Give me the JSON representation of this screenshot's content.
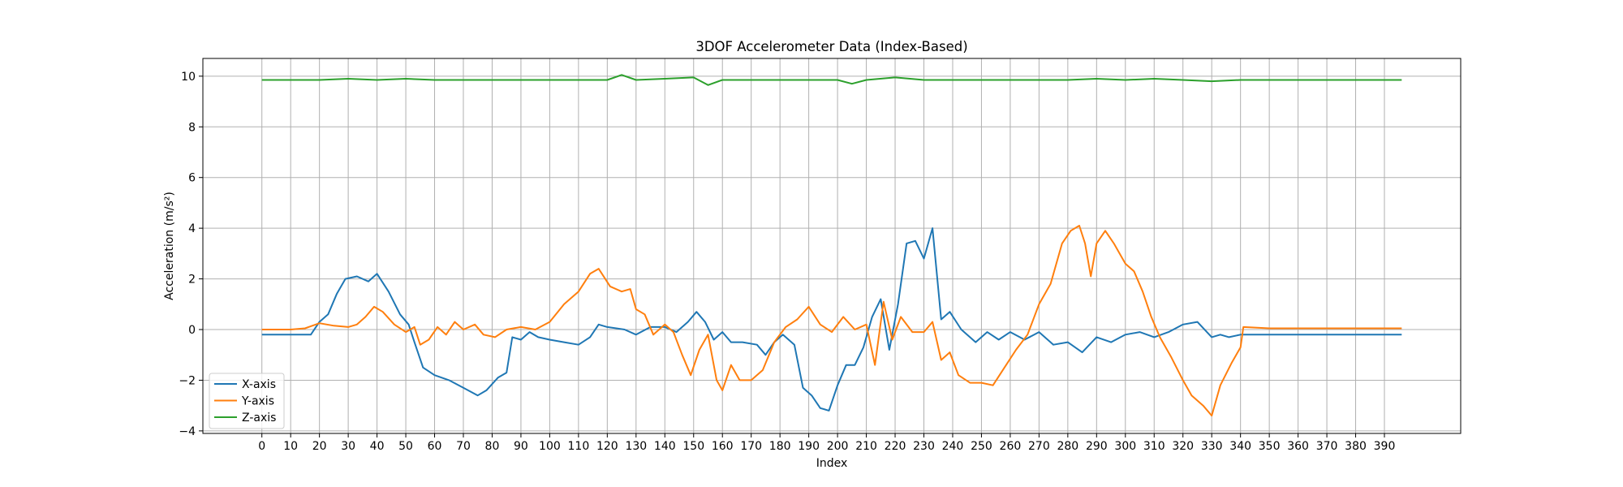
{
  "chart_data": {
    "type": "line",
    "title": "3DOF Accelerometer Data (Index-Based)",
    "xlabel": "Index",
    "ylabel": "Acceleration (m/s²)",
    "xlim": [
      -20.5,
      416.5
    ],
    "ylim": [
      -4.1,
      10.7
    ],
    "xticks": [
      0,
      10,
      20,
      30,
      40,
      50,
      60,
      70,
      80,
      90,
      100,
      110,
      120,
      130,
      140,
      150,
      160,
      170,
      180,
      190,
      200,
      210,
      220,
      230,
      240,
      250,
      260,
      270,
      280,
      290,
      300,
      310,
      320,
      330,
      340,
      350,
      360,
      370,
      380,
      390
    ],
    "yticks": [
      -4,
      -2,
      0,
      2,
      4,
      6,
      8,
      10
    ],
    "grid": true,
    "legend_position": "lower-left",
    "series": [
      {
        "name": "X-axis",
        "color": "#1f77b4",
        "points": [
          [
            0,
            -0.2
          ],
          [
            5,
            -0.2
          ],
          [
            10,
            -0.2
          ],
          [
            17,
            -0.2
          ],
          [
            20,
            0.3
          ],
          [
            23,
            0.6
          ],
          [
            26,
            1.4
          ],
          [
            29,
            2.0
          ],
          [
            33,
            2.1
          ],
          [
            37,
            1.9
          ],
          [
            40,
            2.2
          ],
          [
            44,
            1.5
          ],
          [
            48,
            0.6
          ],
          [
            51,
            0.2
          ],
          [
            53,
            -0.5
          ],
          [
            56,
            -1.5
          ],
          [
            60,
            -1.8
          ],
          [
            65,
            -2.0
          ],
          [
            70,
            -2.3
          ],
          [
            75,
            -2.6
          ],
          [
            78,
            -2.4
          ],
          [
            82,
            -1.9
          ],
          [
            85,
            -1.7
          ],
          [
            87,
            -0.3
          ],
          [
            90,
            -0.4
          ],
          [
            93,
            -0.1
          ],
          [
            96,
            -0.3
          ],
          [
            100,
            -0.4
          ],
          [
            105,
            -0.5
          ],
          [
            110,
            -0.6
          ],
          [
            114,
            -0.3
          ],
          [
            117,
            0.2
          ],
          [
            120,
            0.1
          ],
          [
            126,
            0.0
          ],
          [
            130,
            -0.2
          ],
          [
            135,
            0.1
          ],
          [
            140,
            0.1
          ],
          [
            144,
            -0.1
          ],
          [
            148,
            0.3
          ],
          [
            151,
            0.7
          ],
          [
            154,
            0.3
          ],
          [
            157,
            -0.4
          ],
          [
            160,
            -0.1
          ],
          [
            163,
            -0.5
          ],
          [
            167,
            -0.5
          ],
          [
            172,
            -0.6
          ],
          [
            175,
            -1.0
          ],
          [
            178,
            -0.5
          ],
          [
            181,
            -0.2
          ],
          [
            185,
            -0.6
          ],
          [
            188,
            -2.3
          ],
          [
            191,
            -2.6
          ],
          [
            194,
            -3.1
          ],
          [
            197,
            -3.2
          ],
          [
            200,
            -2.2
          ],
          [
            203,
            -1.4
          ],
          [
            206,
            -1.4
          ],
          [
            209,
            -0.7
          ],
          [
            212,
            0.5
          ],
          [
            215,
            1.2
          ],
          [
            218,
            -0.8
          ],
          [
            221,
            1.0
          ],
          [
            224,
            3.4
          ],
          [
            227,
            3.5
          ],
          [
            230,
            2.8
          ],
          [
            233,
            4.0
          ],
          [
            236,
            0.4
          ],
          [
            239,
            0.7
          ],
          [
            243,
            0.0
          ],
          [
            248,
            -0.5
          ],
          [
            252,
            -0.1
          ],
          [
            256,
            -0.4
          ],
          [
            260,
            -0.1
          ],
          [
            265,
            -0.4
          ],
          [
            270,
            -0.1
          ],
          [
            275,
            -0.6
          ],
          [
            280,
            -0.5
          ],
          [
            285,
            -0.9
          ],
          [
            290,
            -0.3
          ],
          [
            295,
            -0.5
          ],
          [
            300,
            -0.2
          ],
          [
            305,
            -0.1
          ],
          [
            310,
            -0.3
          ],
          [
            315,
            -0.1
          ],
          [
            320,
            0.2
          ],
          [
            325,
            0.3
          ],
          [
            330,
            -0.3
          ],
          [
            333,
            -0.2
          ],
          [
            336,
            -0.3
          ],
          [
            340,
            -0.2
          ],
          [
            350,
            -0.2
          ],
          [
            360,
            -0.2
          ],
          [
            370,
            -0.2
          ],
          [
            380,
            -0.2
          ],
          [
            390,
            -0.2
          ],
          [
            396,
            -0.2
          ]
        ]
      },
      {
        "name": "Y-axis",
        "color": "#ff7f0e",
        "points": [
          [
            0,
            0.0
          ],
          [
            10,
            0.0
          ],
          [
            15,
            0.05
          ],
          [
            20,
            0.25
          ],
          [
            25,
            0.15
          ],
          [
            30,
            0.1
          ],
          [
            33,
            0.2
          ],
          [
            36,
            0.5
          ],
          [
            39,
            0.9
          ],
          [
            42,
            0.7
          ],
          [
            46,
            0.2
          ],
          [
            50,
            -0.1
          ],
          [
            53,
            0.1
          ],
          [
            55,
            -0.6
          ],
          [
            58,
            -0.4
          ],
          [
            61,
            0.1
          ],
          [
            64,
            -0.2
          ],
          [
            67,
            0.3
          ],
          [
            70,
            0.0
          ],
          [
            74,
            0.2
          ],
          [
            77,
            -0.2
          ],
          [
            81,
            -0.3
          ],
          [
            85,
            0.0
          ],
          [
            90,
            0.1
          ],
          [
            95,
            0.0
          ],
          [
            100,
            0.3
          ],
          [
            105,
            1.0
          ],
          [
            110,
            1.5
          ],
          [
            114,
            2.2
          ],
          [
            117,
            2.4
          ],
          [
            121,
            1.7
          ],
          [
            125,
            1.5
          ],
          [
            128,
            1.6
          ],
          [
            130,
            0.8
          ],
          [
            133,
            0.6
          ],
          [
            136,
            -0.2
          ],
          [
            140,
            0.2
          ],
          [
            143,
            -0.1
          ],
          [
            146,
            -1.0
          ],
          [
            149,
            -1.8
          ],
          [
            152,
            -0.8
          ],
          [
            155,
            -0.2
          ],
          [
            158,
            -2.0
          ],
          [
            160,
            -2.4
          ],
          [
            163,
            -1.4
          ],
          [
            166,
            -2.0
          ],
          [
            170,
            -2.0
          ],
          [
            174,
            -1.6
          ],
          [
            178,
            -0.5
          ],
          [
            182,
            0.1
          ],
          [
            186,
            0.4
          ],
          [
            190,
            0.9
          ],
          [
            194,
            0.2
          ],
          [
            198,
            -0.1
          ],
          [
            202,
            0.5
          ],
          [
            206,
            0.0
          ],
          [
            210,
            0.2
          ],
          [
            213,
            -1.4
          ],
          [
            216,
            1.1
          ],
          [
            219,
            -0.4
          ],
          [
            222,
            0.5
          ],
          [
            226,
            -0.1
          ],
          [
            230,
            -0.1
          ],
          [
            233,
            0.3
          ],
          [
            236,
            -1.2
          ],
          [
            239,
            -0.9
          ],
          [
            242,
            -1.8
          ],
          [
            246,
            -2.1
          ],
          [
            250,
            -2.1
          ],
          [
            254,
            -2.2
          ],
          [
            258,
            -1.5
          ],
          [
            262,
            -0.8
          ],
          [
            266,
            -0.2
          ],
          [
            270,
            1.0
          ],
          [
            274,
            1.8
          ],
          [
            278,
            3.4
          ],
          [
            281,
            3.9
          ],
          [
            284,
            4.1
          ],
          [
            286,
            3.4
          ],
          [
            288,
            2.1
          ],
          [
            290,
            3.4
          ],
          [
            293,
            3.9
          ],
          [
            296,
            3.4
          ],
          [
            300,
            2.6
          ],
          [
            303,
            2.3
          ],
          [
            306,
            1.5
          ],
          [
            309,
            0.5
          ],
          [
            312,
            -0.3
          ],
          [
            316,
            -1.1
          ],
          [
            320,
            -2.0
          ],
          [
            323,
            -2.6
          ],
          [
            327,
            -3.0
          ],
          [
            330,
            -3.4
          ],
          [
            333,
            -2.2
          ],
          [
            337,
            -1.3
          ],
          [
            340,
            -0.7
          ],
          [
            341,
            0.1
          ],
          [
            350,
            0.05
          ],
          [
            360,
            0.05
          ],
          [
            370,
            0.05
          ],
          [
            380,
            0.05
          ],
          [
            390,
            0.05
          ],
          [
            396,
            0.05
          ]
        ]
      },
      {
        "name": "Z-axis",
        "color": "#2ca02c",
        "points": [
          [
            0,
            9.85
          ],
          [
            10,
            9.85
          ],
          [
            20,
            9.85
          ],
          [
            30,
            9.9
          ],
          [
            40,
            9.85
          ],
          [
            50,
            9.9
          ],
          [
            60,
            9.85
          ],
          [
            70,
            9.85
          ],
          [
            80,
            9.85
          ],
          [
            90,
            9.85
          ],
          [
            100,
            9.85
          ],
          [
            110,
            9.85
          ],
          [
            120,
            9.85
          ],
          [
            125,
            10.05
          ],
          [
            130,
            9.85
          ],
          [
            140,
            9.9
          ],
          [
            150,
            9.95
          ],
          [
            155,
            9.65
          ],
          [
            160,
            9.85
          ],
          [
            170,
            9.85
          ],
          [
            180,
            9.85
          ],
          [
            190,
            9.85
          ],
          [
            200,
            9.85
          ],
          [
            205,
            9.7
          ],
          [
            210,
            9.85
          ],
          [
            220,
            9.95
          ],
          [
            230,
            9.85
          ],
          [
            240,
            9.85
          ],
          [
            250,
            9.85
          ],
          [
            260,
            9.85
          ],
          [
            270,
            9.85
          ],
          [
            280,
            9.85
          ],
          [
            290,
            9.9
          ],
          [
            300,
            9.85
          ],
          [
            310,
            9.9
          ],
          [
            320,
            9.85
          ],
          [
            330,
            9.8
          ],
          [
            340,
            9.85
          ],
          [
            350,
            9.85
          ],
          [
            360,
            9.85
          ],
          [
            370,
            9.85
          ],
          [
            380,
            9.85
          ],
          [
            390,
            9.85
          ],
          [
            396,
            9.85
          ]
        ]
      }
    ]
  }
}
